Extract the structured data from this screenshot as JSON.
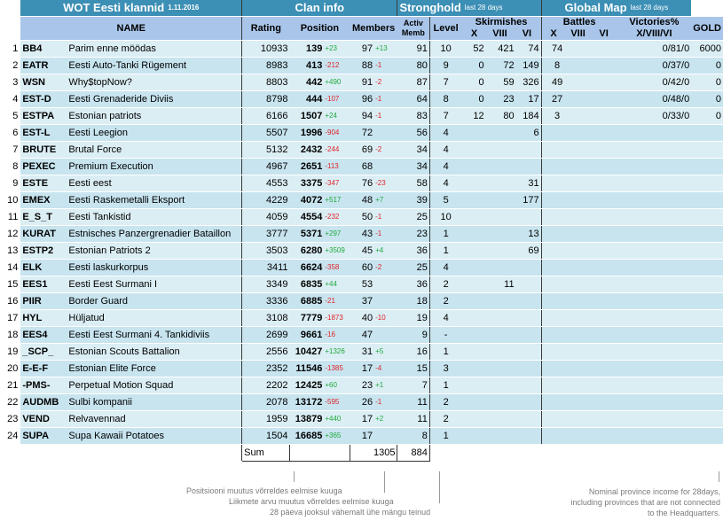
{
  "header": {
    "title": "WOT Eesti klannid",
    "date": "1.11.2016",
    "clan_info": "Clan info",
    "stronghold": "Stronghold",
    "stronghold_note": "last 28 days",
    "global_map": "Global Map",
    "global_map_note": "last 28 days"
  },
  "columns": {
    "name": "NAME",
    "rating": "Rating",
    "position": "Position",
    "members": "Members",
    "activ": "Activ Memb",
    "level": "Level",
    "skirmishes": "Skirmishes",
    "sk_x": "X",
    "sk_viii": "VIII",
    "sk_vi": "VI",
    "battles": "Battles",
    "b_x": "X",
    "b_viii": "VIII",
    "b_vi": "VI",
    "victories": "Victories%",
    "victories_sub": "X/VIII/VI",
    "gold": "GOLD"
  },
  "rows": [
    {
      "n": "1",
      "tag": "BB4",
      "name": "Parim enne möödas",
      "rating": "10933",
      "pos": "139",
      "pchg": "+23",
      "pdir": "up",
      "mem": "97",
      "mchg": "+13",
      "mdir": "up",
      "act": "91",
      "lvl": "10",
      "skx": "52",
      "skviii": "421",
      "skvi": "74",
      "bx": "74",
      "vic": "0/81/0",
      "gold": "6000"
    },
    {
      "n": "2",
      "tag": "EATR",
      "name": "Eesti Auto-Tanki Rügement",
      "rating": "8983",
      "pos": "413",
      "pchg": "-212",
      "pdir": "down",
      "mem": "88",
      "mchg": "-1",
      "mdir": "down",
      "act": "80",
      "lvl": "9",
      "skx": "0",
      "skviii": "72",
      "skvi": "149",
      "bx": "8",
      "vic": "0/37/0",
      "gold": "0"
    },
    {
      "n": "3",
      "tag": "WSN",
      "name": "Why$topNow?",
      "rating": "8803",
      "pos": "442",
      "pchg": "+490",
      "pdir": "up",
      "mem": "91",
      "mchg": "-2",
      "mdir": "down",
      "act": "87",
      "lvl": "7",
      "skx": "0",
      "skviii": "59",
      "skvi": "326",
      "bx": "49",
      "vic": "0/42/0",
      "gold": "0"
    },
    {
      "n": "4",
      "tag": "EST-D",
      "name": "Eesti Grenaderide Diviis",
      "rating": "8798",
      "pos": "444",
      "pchg": "-107",
      "pdir": "down",
      "mem": "96",
      "mchg": "-1",
      "mdir": "down",
      "act": "64",
      "lvl": "8",
      "skx": "0",
      "skviii": "23",
      "skvi": "17",
      "bx": "27",
      "vic": "0/48/0",
      "gold": "0"
    },
    {
      "n": "5",
      "tag": "ESTPA",
      "name": "Estonian patriots",
      "rating": "6166",
      "pos": "1507",
      "pchg": "+24",
      "pdir": "up",
      "mem": "94",
      "mchg": "-1",
      "mdir": "down",
      "act": "83",
      "lvl": "7",
      "skx": "12",
      "skviii": "80",
      "skvi": "184",
      "bx": "3",
      "vic": "0/33/0",
      "gold": "0"
    },
    {
      "n": "6",
      "tag": "EST-L",
      "name": "Eesti Leegion",
      "rating": "5507",
      "pos": "1996",
      "pchg": "-904",
      "pdir": "down",
      "mem": "72",
      "mchg": "",
      "mdir": "",
      "act": "56",
      "lvl": "4",
      "skx": "",
      "skviii": "",
      "skvi": "6",
      "bx": "",
      "vic": "",
      "gold": ""
    },
    {
      "n": "7",
      "tag": "BRUTE",
      "name": "Brutal Force",
      "rating": "5132",
      "pos": "2432",
      "pchg": "-244",
      "pdir": "down",
      "mem": "69",
      "mchg": "-2",
      "mdir": "down",
      "act": "34",
      "lvl": "4",
      "skx": "",
      "skviii": "",
      "skvi": "",
      "bx": "",
      "vic": "",
      "gold": ""
    },
    {
      "n": "8",
      "tag": "PEXEC",
      "name": "Premium Execution",
      "rating": "4967",
      "pos": "2651",
      "pchg": "-113",
      "pdir": "down",
      "mem": "68",
      "mchg": "",
      "mdir": "",
      "act": "34",
      "lvl": "4",
      "skx": "",
      "skviii": "",
      "skvi": "",
      "bx": "",
      "vic": "",
      "gold": ""
    },
    {
      "n": "9",
      "tag": "ESTE",
      "name": "Eesti eest",
      "rating": "4553",
      "pos": "3375",
      "pchg": "-347",
      "pdir": "down",
      "mem": "76",
      "mchg": "-23",
      "mdir": "down",
      "act": "58",
      "lvl": "4",
      "skx": "",
      "skviii": "",
      "skvi": "31",
      "bx": "",
      "vic": "",
      "gold": ""
    },
    {
      "n": "10",
      "tag": "EMEX",
      "name": "Eesti Raskemetalli Eksport",
      "rating": "4229",
      "pos": "4072",
      "pchg": "+517",
      "pdir": "up",
      "mem": "48",
      "mchg": "+7",
      "mdir": "up",
      "act": "39",
      "lvl": "5",
      "skx": "",
      "skviii": "",
      "skvi": "177",
      "bx": "",
      "vic": "",
      "gold": ""
    },
    {
      "n": "11",
      "tag": "E_S_T",
      "name": "Eesti Tankistid",
      "rating": "4059",
      "pos": "4554",
      "pchg": "-232",
      "pdir": "down",
      "mem": "50",
      "mchg": "-1",
      "mdir": "down",
      "act": "25",
      "lvl": "10",
      "skx": "",
      "skviii": "",
      "skvi": "",
      "bx": "",
      "vic": "",
      "gold": ""
    },
    {
      "n": "12",
      "tag": "KURAT",
      "name": "Estnisches Panzergrenadier Bataillon",
      "rating": "3777",
      "pos": "5371",
      "pchg": "+297",
      "pdir": "up",
      "mem": "43",
      "mchg": "-1",
      "mdir": "down",
      "act": "23",
      "lvl": "1",
      "skx": "",
      "skviii": "",
      "skvi": "13",
      "bx": "",
      "vic": "",
      "gold": ""
    },
    {
      "n": "13",
      "tag": "ESTP2",
      "name": "Estonian Patriots 2",
      "rating": "3503",
      "pos": "6280",
      "pchg": "+3509",
      "pdir": "up",
      "mem": "45",
      "mchg": "+4",
      "mdir": "up",
      "act": "36",
      "lvl": "1",
      "skx": "",
      "skviii": "",
      "skvi": "69",
      "bx": "",
      "vic": "",
      "gold": ""
    },
    {
      "n": "14",
      "tag": "ELK",
      "name": "Eesti laskurkorpus",
      "rating": "3411",
      "pos": "6624",
      "pchg": "-358",
      "pdir": "down",
      "mem": "60",
      "mchg": "-2",
      "mdir": "down",
      "act": "25",
      "lvl": "4",
      "skx": "",
      "skviii": "",
      "skvi": "",
      "bx": "",
      "vic": "",
      "gold": ""
    },
    {
      "n": "15",
      "tag": "EES1",
      "name": "Eesti Eest Surmani I",
      "rating": "3349",
      "pos": "6835",
      "pchg": "+44",
      "pdir": "up",
      "mem": "53",
      "mchg": "",
      "mdir": "",
      "act": "36",
      "lvl": "2",
      "skx": "",
      "skviii": "11",
      "skvi": "",
      "bx": "",
      "vic": "",
      "gold": ""
    },
    {
      "n": "16",
      "tag": "PIIR",
      "name": "Border Guard",
      "rating": "3336",
      "pos": "6885",
      "pchg": "-21",
      "pdir": "down",
      "mem": "37",
      "mchg": "",
      "mdir": "",
      "act": "18",
      "lvl": "2",
      "skx": "",
      "skviii": "",
      "skvi": "",
      "bx": "",
      "vic": "",
      "gold": ""
    },
    {
      "n": "17",
      "tag": "HYL",
      "name": "Hüljatud",
      "rating": "3108",
      "pos": "7779",
      "pchg": "-1873",
      "pdir": "down",
      "mem": "40",
      "mchg": "-10",
      "mdir": "down",
      "act": "19",
      "lvl": "4",
      "skx": "",
      "skviii": "",
      "skvi": "",
      "bx": "",
      "vic": "",
      "gold": ""
    },
    {
      "n": "18",
      "tag": "EES4",
      "name": "Eesti Eest Surmani 4. Tankidiviis",
      "rating": "2699",
      "pos": "9661",
      "pchg": "-16",
      "pdir": "down",
      "mem": "47",
      "mchg": "",
      "mdir": "",
      "act": "9",
      "lvl": "-",
      "skx": "",
      "skviii": "",
      "skvi": "",
      "bx": "",
      "vic": "",
      "gold": ""
    },
    {
      "n": "19",
      "tag": "_SCP_",
      "name": "Estonian Scouts Battalion",
      "rating": "2556",
      "pos": "10427",
      "pchg": "+1326",
      "pdir": "up",
      "mem": "31",
      "mchg": "+5",
      "mdir": "up",
      "act": "16",
      "lvl": "1",
      "skx": "",
      "skviii": "",
      "skvi": "",
      "bx": "",
      "vic": "",
      "gold": ""
    },
    {
      "n": "20",
      "tag": "E-E-F",
      "name": "Estonian Elite Force",
      "rating": "2352",
      "pos": "11546",
      "pchg": "-1385",
      "pdir": "down",
      "mem": "17",
      "mchg": "-4",
      "mdir": "down",
      "act": "15",
      "lvl": "3",
      "skx": "",
      "skviii": "",
      "skvi": "",
      "bx": "",
      "vic": "",
      "gold": ""
    },
    {
      "n": "21",
      "tag": "-PMS-",
      "name": "Perpetual Motion Squad",
      "rating": "2202",
      "pos": "12425",
      "pchg": "+60",
      "pdir": "up",
      "mem": "23",
      "mchg": "+1",
      "mdir": "up",
      "act": "7",
      "lvl": "1",
      "skx": "",
      "skviii": "",
      "skvi": "",
      "bx": "",
      "vic": "",
      "gold": ""
    },
    {
      "n": "22",
      "tag": "AUDMB",
      "name": "Sulbi kompanii",
      "rating": "2078",
      "pos": "13172",
      "pchg": "-595",
      "pdir": "down",
      "mem": "26",
      "mchg": "-1",
      "mdir": "down",
      "act": "11",
      "lvl": "2",
      "skx": "",
      "skviii": "",
      "skvi": "",
      "bx": "",
      "vic": "",
      "gold": ""
    },
    {
      "n": "23",
      "tag": "VEND",
      "name": "Relvavennad",
      "rating": "1959",
      "pos": "13879",
      "pchg": "+440",
      "pdir": "up",
      "mem": "17",
      "mchg": "+2",
      "mdir": "up",
      "act": "11",
      "lvl": "2",
      "skx": "",
      "skviii": "",
      "skvi": "",
      "bx": "",
      "vic": "",
      "gold": ""
    },
    {
      "n": "24",
      "tag": "SUPA",
      "name": "Supa Kawaii Potatoes",
      "rating": "1504",
      "pos": "16685",
      "pchg": "+365",
      "pdir": "up",
      "mem": "17",
      "mchg": "",
      "mdir": "",
      "act": "8",
      "lvl": "1",
      "skx": "",
      "skviii": "",
      "skvi": "",
      "bx": "",
      "vic": "",
      "gold": ""
    }
  ],
  "sum": {
    "label": "Sum",
    "members": "1305",
    "activ": "884"
  },
  "notes": {
    "position_change": "Positsiooni muutus võrreldes eelmise kuuga",
    "members_change": "Liikmete arvu muutus võrreldes eelmise kuuga",
    "activ_def": "28 päeva jooksul vähemalt ühe mängu teinud",
    "gold_note": "Nominal province income for 28days, including provinces that are not connected to the Headquarters."
  },
  "colors": {
    "header_dark": "#3c8fb5",
    "header_light": "#a9c6ea",
    "row_odd": "#dbeef4",
    "row_even": "#c7e4ef",
    "up": "#1faa3c",
    "down": "#e0242a"
  }
}
